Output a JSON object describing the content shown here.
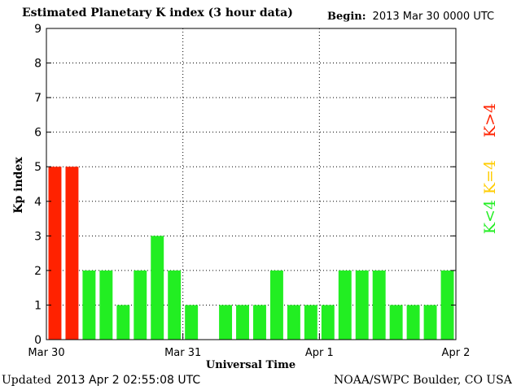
{
  "header": {
    "title": "Estimated Planetary K index (3 hour data)",
    "begin_label": "Begin:",
    "begin_value": "2013 Mar 30 0000 UTC"
  },
  "footer": {
    "updated_label": "Updated",
    "updated_value": "2013 Apr  2 02:55:08 UTC",
    "credit": "NOAA/SWPC Boulder, CO USA"
  },
  "colors": {
    "below": "#22ee22",
    "equal": "#ffcc00",
    "above": "#ff2200"
  },
  "chart_data": {
    "type": "bar",
    "title": "Estimated Planetary K index (3 hour data)",
    "xlabel": "Universal Time",
    "ylabel": "Kp index",
    "ylim": [
      0,
      9
    ],
    "yticks": [
      "0",
      "1",
      "2",
      "3",
      "4",
      "5",
      "6",
      "7",
      "8",
      "9"
    ],
    "xticks": [
      "Mar 30",
      "Mar 31",
      "Apr 1",
      "Apr 2"
    ],
    "grid": true,
    "values": [
      5,
      5,
      2,
      2,
      1,
      2,
      3,
      2,
      1,
      0,
      1,
      1,
      1,
      2,
      1,
      1,
      1,
      2,
      2,
      2,
      1,
      1,
      1,
      2
    ],
    "legend": [
      {
        "label": "K<4",
        "color_key": "below"
      },
      {
        "label": "K=4",
        "color_key": "equal"
      },
      {
        "label": "K>4",
        "color_key": "above"
      }
    ]
  }
}
